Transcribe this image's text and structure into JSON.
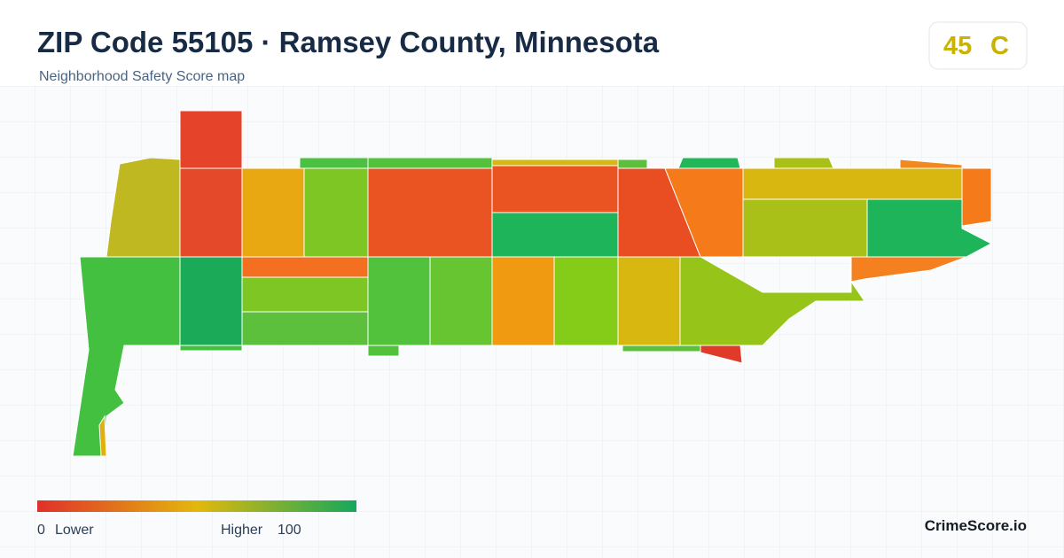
{
  "header": {
    "title": "ZIP Code 55105 · Ramsey County, Minnesota",
    "subtitle": "Neighborhood Safety Score map"
  },
  "score": {
    "value": "45",
    "grade": "C"
  },
  "legend": {
    "min": "0",
    "min_label": "Lower",
    "max_label": "Higher",
    "max": "100"
  },
  "brand": "CrimeScore.io"
}
